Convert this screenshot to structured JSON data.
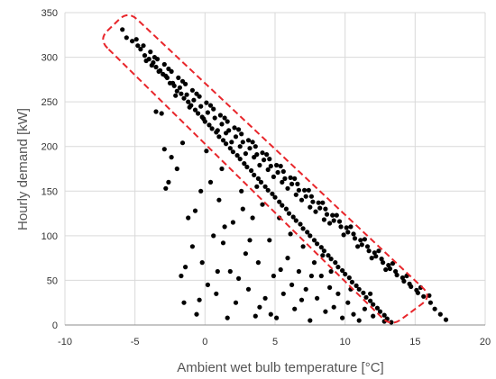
{
  "chart_data": {
    "type": "scatter",
    "title": "",
    "xlabel": "Ambient wet bulb temperature [°C]",
    "ylabel": "Hourly demand [kW]",
    "xlim": [
      -10,
      20
    ],
    "ylim": [
      0,
      350
    ],
    "x_ticks": [
      "-10",
      "-5",
      "0",
      "5",
      "10",
      "15",
      "20"
    ],
    "y_ticks": [
      "0",
      "50",
      "100",
      "150",
      "200",
      "250",
      "300",
      "350"
    ],
    "x_tick_values": [
      -10,
      -5,
      0,
      5,
      10,
      15,
      20
    ],
    "y_tick_values": [
      0,
      50,
      100,
      150,
      200,
      250,
      300,
      350
    ],
    "grid": true,
    "legend": "none",
    "marker_color": "#000000",
    "highlight_color": "#e8262b",
    "highlight_region": {
      "description": "dashed rounded band enclosing the upper linear cluster",
      "corners": [
        [
          -7.6,
          320
        ],
        [
          -5.5,
          352
        ],
        [
          16.2,
          32
        ],
        [
          13.3,
          -2
        ]
      ]
    },
    "series": [
      {
        "points": [
          [
            -5.9,
            331
          ],
          [
            -5.6,
            322
          ],
          [
            -5.2,
            318
          ],
          [
            -4.8,
            313
          ],
          [
            -4.6,
            309
          ],
          [
            -4.3,
            302
          ],
          [
            -4.0,
            298
          ],
          [
            -3.7,
            294
          ],
          [
            -3.5,
            289
          ],
          [
            -3.2,
            285
          ],
          [
            -3.0,
            281
          ],
          [
            -2.7,
            277
          ],
          [
            -2.5,
            271
          ],
          [
            -2.2,
            268
          ],
          [
            -2.0,
            262
          ],
          [
            -1.7,
            259
          ],
          [
            -1.5,
            254
          ],
          [
            -1.2,
            250
          ],
          [
            -1.0,
            246
          ],
          [
            -0.7,
            241
          ],
          [
            -0.5,
            237
          ],
          [
            -0.2,
            233
          ],
          [
            0.0,
            228
          ],
          [
            0.3,
            224
          ],
          [
            0.5,
            220
          ],
          [
            0.8,
            216
          ],
          [
            1.0,
            211
          ],
          [
            1.3,
            207
          ],
          [
            1.5,
            203
          ],
          [
            1.8,
            198
          ],
          [
            2.0,
            194
          ],
          [
            2.3,
            190
          ],
          [
            2.5,
            186
          ],
          [
            2.8,
            181
          ],
          [
            3.0,
            177
          ],
          [
            3.3,
            173
          ],
          [
            3.5,
            168
          ],
          [
            3.8,
            164
          ],
          [
            4.0,
            160
          ],
          [
            4.3,
            155
          ],
          [
            4.5,
            151
          ],
          [
            4.8,
            147
          ],
          [
            5.0,
            143
          ],
          [
            5.3,
            138
          ],
          [
            5.5,
            134
          ],
          [
            5.8,
            130
          ],
          [
            6.0,
            125
          ],
          [
            6.3,
            121
          ],
          [
            6.5,
            117
          ],
          [
            6.8,
            113
          ],
          [
            7.0,
            108
          ],
          [
            7.3,
            104
          ],
          [
            7.5,
            100
          ],
          [
            7.8,
            95
          ],
          [
            8.0,
            91
          ],
          [
            8.3,
            87
          ],
          [
            8.5,
            83
          ],
          [
            8.8,
            78
          ],
          [
            9.0,
            74
          ],
          [
            9.3,
            70
          ],
          [
            9.5,
            65
          ],
          [
            9.8,
            61
          ],
          [
            10.0,
            57
          ],
          [
            10.3,
            53
          ],
          [
            10.5,
            48
          ],
          [
            10.8,
            44
          ],
          [
            11.0,
            40
          ],
          [
            11.3,
            36
          ],
          [
            11.5,
            31
          ],
          [
            11.8,
            27
          ],
          [
            12.0,
            23
          ],
          [
            12.3,
            19
          ],
          [
            12.5,
            15
          ],
          [
            12.8,
            11
          ],
          [
            13.0,
            7
          ],
          [
            13.3,
            3
          ],
          [
            -4.9,
            320
          ],
          [
            -4.4,
            313
          ],
          [
            -3.9,
            306
          ],
          [
            -3.4,
            298
          ],
          [
            -2.9,
            292
          ],
          [
            -2.4,
            284
          ],
          [
            -1.9,
            277
          ],
          [
            -1.4,
            270
          ],
          [
            -0.9,
            263
          ],
          [
            -0.4,
            256
          ],
          [
            0.1,
            249
          ],
          [
            0.6,
            242
          ],
          [
            1.1,
            235
          ],
          [
            1.6,
            228
          ],
          [
            2.1,
            221
          ],
          [
            2.6,
            214
          ],
          [
            3.1,
            207
          ],
          [
            3.6,
            200
          ],
          [
            4.1,
            193
          ],
          [
            4.6,
            186
          ],
          [
            5.1,
            179
          ],
          [
            5.6,
            172
          ],
          [
            6.1,
            165
          ],
          [
            6.6,
            158
          ],
          [
            7.1,
            151
          ],
          [
            7.6,
            144
          ],
          [
            8.1,
            137
          ],
          [
            8.6,
            130
          ],
          [
            9.1,
            123
          ],
          [
            9.6,
            116
          ],
          [
            10.1,
            109
          ],
          [
            10.6,
            102
          ],
          [
            11.1,
            95
          ],
          [
            11.6,
            88
          ],
          [
            12.1,
            81
          ],
          [
            12.6,
            74
          ],
          [
            13.1,
            67
          ],
          [
            13.6,
            60
          ],
          [
            14.1,
            53
          ],
          [
            14.6,
            46
          ],
          [
            15.1,
            39
          ],
          [
            15.6,
            32
          ],
          [
            16.1,
            25
          ],
          [
            16.4,
            18
          ],
          [
            16.8,
            12
          ],
          [
            17.2,
            6
          ],
          [
            -4.2,
            296
          ],
          [
            -3.8,
            291
          ],
          [
            -3.3,
            284
          ],
          [
            -2.8,
            279
          ],
          [
            -2.3,
            271
          ],
          [
            -1.8,
            266
          ],
          [
            -1.3,
            258
          ],
          [
            -0.8,
            252
          ],
          [
            -0.3,
            245
          ],
          [
            0.2,
            238
          ],
          [
            0.7,
            232
          ],
          [
            1.2,
            225
          ],
          [
            1.7,
            218
          ],
          [
            2.2,
            211
          ],
          [
            2.7,
            205
          ],
          [
            3.2,
            198
          ],
          [
            3.7,
            191
          ],
          [
            4.2,
            185
          ],
          [
            4.7,
            178
          ],
          [
            5.2,
            171
          ],
          [
            5.7,
            164
          ],
          [
            6.2,
            158
          ],
          [
            6.7,
            151
          ],
          [
            7.2,
            144
          ],
          [
            7.7,
            138
          ],
          [
            8.2,
            131
          ],
          [
            8.7,
            124
          ],
          [
            9.2,
            117
          ],
          [
            9.7,
            110
          ],
          [
            10.2,
            104
          ],
          [
            10.7,
            97
          ],
          [
            11.2,
            90
          ],
          [
            11.7,
            83
          ],
          [
            12.2,
            77
          ],
          [
            12.7,
            70
          ],
          [
            13.2,
            63
          ],
          [
            13.7,
            56
          ],
          [
            14.2,
            49
          ],
          [
            14.7,
            43
          ],
          [
            15.2,
            36
          ],
          [
            -3.6,
            300
          ],
          [
            -2.6,
            287
          ],
          [
            -1.6,
            273
          ],
          [
            -0.6,
            259
          ],
          [
            0.4,
            246
          ],
          [
            1.4,
            232
          ],
          [
            2.4,
            219
          ],
          [
            3.4,
            205
          ],
          [
            4.4,
            191
          ],
          [
            5.4,
            178
          ],
          [
            6.4,
            164
          ],
          [
            7.4,
            151
          ],
          [
            8.4,
            137
          ],
          [
            9.4,
            123
          ],
          [
            10.4,
            110
          ],
          [
            11.4,
            96
          ],
          [
            12.4,
            83
          ],
          [
            13.4,
            69
          ],
          [
            14.4,
            55
          ],
          [
            15.4,
            42
          ],
          [
            16.0,
            33
          ],
          [
            -2.1,
            257
          ],
          [
            -1.1,
            244
          ],
          [
            -0.1,
            231
          ],
          [
            0.9,
            218
          ],
          [
            1.9,
            205
          ],
          [
            2.9,
            192
          ],
          [
            3.9,
            179
          ],
          [
            4.9,
            166
          ],
          [
            5.9,
            153
          ],
          [
            6.9,
            140
          ],
          [
            7.9,
            127
          ],
          [
            8.9,
            114
          ],
          [
            9.9,
            101
          ],
          [
            10.9,
            88
          ],
          [
            11.9,
            75
          ],
          [
            12.9,
            62
          ],
          [
            1.5,
            215
          ],
          [
            2.5,
            200
          ],
          [
            3.5,
            188
          ],
          [
            4.5,
            174
          ],
          [
            5.5,
            160
          ],
          [
            6.5,
            146
          ],
          [
            7.5,
            132
          ],
          [
            8.5,
            118
          ],
          [
            -3.5,
            239
          ],
          [
            -3.1,
            237
          ],
          [
            -2.9,
            197
          ],
          [
            -2.4,
            188
          ],
          [
            -2.6,
            160
          ],
          [
            -2.8,
            153
          ],
          [
            -2.0,
            175
          ],
          [
            -1.6,
            204
          ],
          [
            -1.2,
            120
          ],
          [
            -0.7,
            128
          ],
          [
            -0.9,
            88
          ],
          [
            -1.7,
            55
          ],
          [
            -1.4,
            65
          ],
          [
            -0.4,
            28
          ],
          [
            -0.6,
            12
          ],
          [
            0.2,
            45
          ],
          [
            0.6,
            100
          ],
          [
            1.0,
            140
          ],
          [
            1.3,
            92
          ],
          [
            1.8,
            60
          ],
          [
            2.0,
            115
          ],
          [
            2.2,
            25
          ],
          [
            2.6,
            150
          ],
          [
            2.9,
            80
          ],
          [
            3.1,
            40
          ],
          [
            3.4,
            120
          ],
          [
            3.6,
            10
          ],
          [
            3.8,
            70
          ],
          [
            4.1,
            135
          ],
          [
            4.3,
            30
          ],
          [
            4.6,
            95
          ],
          [
            4.9,
            55
          ],
          [
            5.1,
            8
          ],
          [
            5.3,
            120
          ],
          [
            5.6,
            35
          ],
          [
            5.9,
            75
          ],
          [
            6.1,
            102
          ],
          [
            6.4,
            18
          ],
          [
            6.7,
            60
          ],
          [
            7.0,
            88
          ],
          [
            7.2,
            40
          ],
          [
            7.5,
            5
          ],
          [
            7.8,
            70
          ],
          [
            8.0,
            30
          ],
          [
            8.3,
            55
          ],
          [
            8.6,
            15
          ],
          [
            8.9,
            42
          ],
          [
            9.2,
            20
          ],
          [
            9.5,
            35
          ],
          [
            9.8,
            8
          ],
          [
            10.2,
            25
          ],
          [
            10.6,
            12
          ],
          [
            11.0,
            5
          ],
          [
            11.4,
            18
          ],
          [
            12.0,
            10
          ],
          [
            12.8,
            4
          ],
          [
            -1.5,
            25
          ],
          [
            -0.2,
            70
          ],
          [
            0.8,
            35
          ],
          [
            1.6,
            8
          ],
          [
            2.4,
            52
          ],
          [
            3.2,
            95
          ],
          [
            3.9,
            20
          ],
          [
            4.7,
            12
          ],
          [
            5.4,
            62
          ],
          [
            6.2,
            45
          ],
          [
            6.9,
            28
          ],
          [
            7.6,
            55
          ],
          [
            8.4,
            78
          ],
          [
            9.0,
            60
          ],
          [
            10.4,
            40
          ],
          [
            11.8,
            35
          ],
          [
            0.4,
            160
          ],
          [
            1.2,
            175
          ],
          [
            0.9,
            60
          ],
          [
            2.7,
            130
          ],
          [
            3.7,
            155
          ],
          [
            1.4,
            110
          ],
          [
            0.1,
            195
          ],
          [
            -0.3,
            150
          ]
        ]
      }
    ]
  }
}
